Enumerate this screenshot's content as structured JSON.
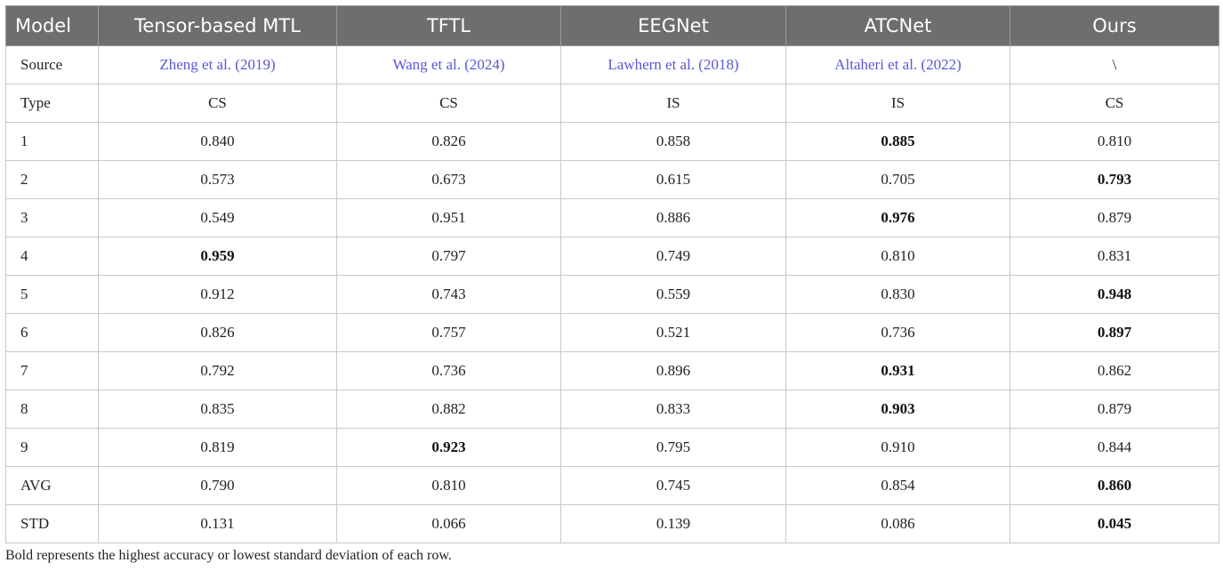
{
  "table": {
    "headers": [
      "Model",
      "Tensor-based MTL",
      "TFTL",
      "EEGNet",
      "ATCNet",
      "Ours"
    ],
    "rows": [
      {
        "label": "Source",
        "cells": [
          "Zheng et al. (2019)",
          "Wang et al. (2024)",
          "Lawhern et al. (2018)",
          "Altaheri et al. (2022)",
          "\\"
        ],
        "links": [
          true,
          true,
          true,
          true,
          false
        ],
        "bold": [
          false,
          false,
          false,
          false,
          false
        ]
      },
      {
        "label": "Type",
        "cells": [
          "CS",
          "CS",
          "IS",
          "IS",
          "CS"
        ],
        "links": [
          false,
          false,
          false,
          false,
          false
        ],
        "bold": [
          false,
          false,
          false,
          false,
          false
        ]
      },
      {
        "label": "1",
        "cells": [
          "0.840",
          "0.826",
          "0.858",
          "0.885",
          "0.810"
        ],
        "links": [
          false,
          false,
          false,
          false,
          false
        ],
        "bold": [
          false,
          false,
          false,
          true,
          false
        ]
      },
      {
        "label": "2",
        "cells": [
          "0.573",
          "0.673",
          "0.615",
          "0.705",
          "0.793"
        ],
        "links": [
          false,
          false,
          false,
          false,
          false
        ],
        "bold": [
          false,
          false,
          false,
          false,
          true
        ]
      },
      {
        "label": "3",
        "cells": [
          "0.549",
          "0.951",
          "0.886",
          "0.976",
          "0.879"
        ],
        "links": [
          false,
          false,
          false,
          false,
          false
        ],
        "bold": [
          false,
          false,
          false,
          true,
          false
        ]
      },
      {
        "label": "4",
        "cells": [
          "0.959",
          "0.797",
          "0.749",
          "0.810",
          "0.831"
        ],
        "links": [
          false,
          false,
          false,
          false,
          false
        ],
        "bold": [
          true,
          false,
          false,
          false,
          false
        ]
      },
      {
        "label": "5",
        "cells": [
          "0.912",
          "0.743",
          "0.559",
          "0.830",
          "0.948"
        ],
        "links": [
          false,
          false,
          false,
          false,
          false
        ],
        "bold": [
          false,
          false,
          false,
          false,
          true
        ]
      },
      {
        "label": "6",
        "cells": [
          "0.826",
          "0.757",
          "0.521",
          "0.736",
          "0.897"
        ],
        "links": [
          false,
          false,
          false,
          false,
          false
        ],
        "bold": [
          false,
          false,
          false,
          false,
          true
        ]
      },
      {
        "label": "7",
        "cells": [
          "0.792",
          "0.736",
          "0.896",
          "0.931",
          "0.862"
        ],
        "links": [
          false,
          false,
          false,
          false,
          false
        ],
        "bold": [
          false,
          false,
          false,
          true,
          false
        ]
      },
      {
        "label": "8",
        "cells": [
          "0.835",
          "0.882",
          "0.833",
          "0.903",
          "0.879"
        ],
        "links": [
          false,
          false,
          false,
          false,
          false
        ],
        "bold": [
          false,
          false,
          false,
          true,
          false
        ]
      },
      {
        "label": "9",
        "cells": [
          "0.819",
          "0.923",
          "0.795",
          "0.910",
          "0.844"
        ],
        "links": [
          false,
          false,
          false,
          false,
          false
        ],
        "bold": [
          false,
          true,
          false,
          false,
          false
        ]
      },
      {
        "label": "AVG",
        "cells": [
          "0.790",
          "0.810",
          "0.745",
          "0.854",
          "0.860"
        ],
        "links": [
          false,
          false,
          false,
          false,
          false
        ],
        "bold": [
          false,
          false,
          false,
          false,
          true
        ]
      },
      {
        "label": "STD",
        "cells": [
          "0.131",
          "0.066",
          "0.139",
          "0.086",
          "0.045"
        ],
        "links": [
          false,
          false,
          false,
          false,
          false
        ],
        "bold": [
          false,
          false,
          false,
          false,
          true
        ]
      }
    ]
  },
  "footnote": "Bold represents the highest accuracy or lowest standard deviation of each row."
}
